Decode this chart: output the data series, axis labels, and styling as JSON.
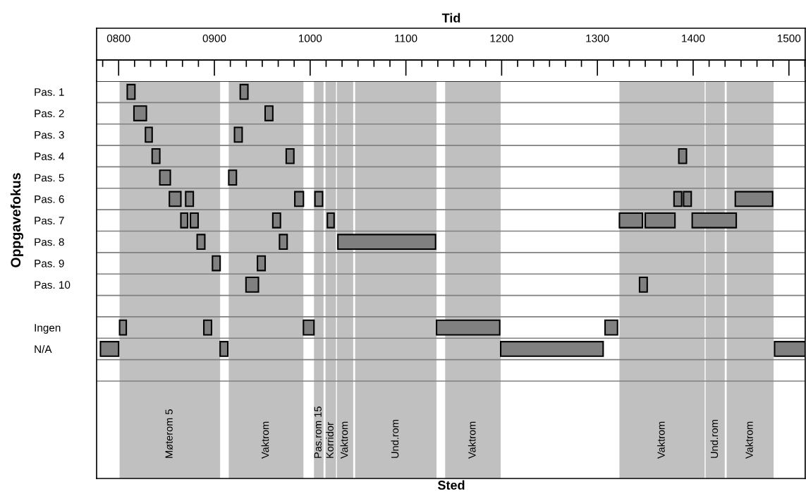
{
  "chart_data": {
    "type": "bar",
    "orientation": "horizontal",
    "title": "Tid",
    "annotations": [
      "Sted"
    ],
    "ylabel": "Oppgavefokus",
    "categories": [
      "Pas. 1",
      "Pas. 2",
      "Pas. 3",
      "Pas. 4",
      "Pas. 5",
      "Pas. 6",
      "Pas. 7",
      "Pas. 8",
      "Pas. 9",
      "Pas. 10",
      null,
      "Ingen",
      "N/A",
      null
    ],
    "series": [
      {
        "color": "#808080",
        "base": [
          809,
          816,
          828,
          835,
          843,
          853,
          865,
          882,
          898,
          933,
          null,
          801,
          781,
          null
        ],
        "values": [
          8,
          13,
          7,
          8,
          11,
          12,
          7,
          8,
          8,
          13,
          null,
          7,
          19,
          null
        ]
      },
      {
        "color": "#808080",
        "base": [
          927,
          953,
          921,
          975,
          915,
          870,
          875,
          968,
          945,
          1344,
          null,
          889,
          906,
          null
        ],
        "values": [
          8,
          8,
          8,
          8,
          8,
          8,
          8,
          8,
          8,
          8,
          null,
          8,
          8,
          null
        ]
      },
      {
        "color": "#808080",
        "base": [
          null,
          null,
          null,
          1385,
          null,
          984,
          961,
          1029,
          null,
          null,
          null,
          993,
          1199,
          null
        ],
        "values": [
          null,
          null,
          null,
          8,
          null,
          9,
          8,
          102,
          null,
          null,
          null,
          11,
          107,
          null
        ]
      },
      {
        "color": "#808080",
        "base": [
          null,
          null,
          null,
          null,
          null,
          1005,
          1018,
          null,
          null,
          null,
          null,
          1132,
          1485,
          null
        ],
        "values": [
          null,
          null,
          null,
          null,
          null,
          8,
          7,
          null,
          null,
          null,
          null,
          66,
          32,
          null
        ]
      },
      {
        "color": "#808080",
        "base": [
          null,
          null,
          null,
          null,
          null,
          1380,
          1323,
          null,
          null,
          null,
          null,
          1308,
          null,
          null
        ],
        "values": [
          null,
          null,
          null,
          null,
          null,
          8,
          24,
          null,
          null,
          null,
          null,
          13,
          null,
          null
        ]
      },
      {
        "color": "#808080",
        "base": [
          null,
          null,
          null,
          null,
          null,
          1390,
          1350,
          null,
          null,
          null,
          null,
          null,
          null,
          null
        ],
        "values": [
          null,
          null,
          null,
          null,
          null,
          8,
          31,
          null,
          null,
          null,
          null,
          null,
          null,
          null
        ]
      },
      {
        "color": "#808080",
        "base": [
          null,
          null,
          null,
          null,
          null,
          1444,
          1399,
          null,
          null,
          null,
          null,
          null,
          null,
          null
        ],
        "values": [
          null,
          null,
          null,
          null,
          null,
          39,
          46,
          null,
          null,
          null,
          null,
          null,
          null,
          null
        ]
      }
    ],
    "xlim": [
      777,
      1517
    ],
    "xticks": [
      {
        "value": 800,
        "label": "0800"
      },
      {
        "value": 900,
        "label": "0900"
      },
      1000,
      1100,
      1200,
      1300,
      1400,
      1500
    ],
    "bands": [
      {
        "axis": "x",
        "from": 801,
        "to": 906,
        "label": "Møterom 5",
        "color": "#c0c0c0"
      },
      {
        "axis": "x",
        "from": 915,
        "to": 993,
        "label": "Vaktrom",
        "color": "#c0c0c0"
      },
      {
        "axis": "x",
        "from": 1004,
        "to": 1014,
        "label": "Pas.rom 15",
        "color": "#c0c0c0"
      },
      {
        "axis": "x",
        "from": 1016,
        "to": 1027,
        "label": "Korridor",
        "color": "#c0c0c0"
      },
      {
        "axis": "x",
        "from": 1028,
        "to": 1045,
        "label": "Vaktrom",
        "color": "#c0c0c0"
      },
      {
        "axis": "x",
        "from": 1047,
        "to": 1132,
        "label": "Und.rom",
        "color": "#c0c0c0"
      },
      {
        "axis": "x",
        "from": 1141,
        "to": 1199,
        "label": "Vaktrom",
        "color": "#c0c0c0"
      },
      {
        "axis": "x",
        "from": 1323,
        "to": 1412,
        "label": "Vaktrom",
        "color": "#c0c0c0"
      },
      {
        "axis": "x",
        "from": 1413,
        "to": 1433,
        "label": "Und.rom",
        "color": "#c0c0c0"
      },
      {
        "axis": "x",
        "from": 1435,
        "to": 1484,
        "label": "Vaktrom",
        "color": "#c0c0c0"
      }
    ],
    "grid": "y"
  }
}
